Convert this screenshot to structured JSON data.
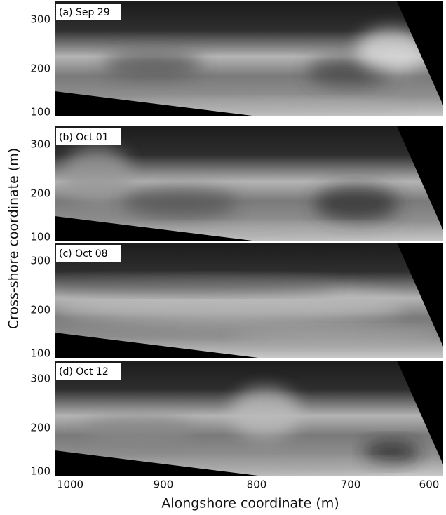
{
  "x_axis": {
    "label": "Alongshore coordinate (m)",
    "ticks": [
      "1000",
      "900",
      "800",
      "700",
      "600"
    ]
  },
  "y_axis": {
    "label": "Cross-shore coordinate (m)",
    "ticks": [
      "300",
      "200",
      "100"
    ]
  },
  "panels": [
    {
      "label": "(a) Sep 29"
    },
    {
      "label": "(b) Oct 01"
    },
    {
      "label": "(c) Oct 08"
    },
    {
      "label": "(d) Oct 12"
    }
  ]
}
